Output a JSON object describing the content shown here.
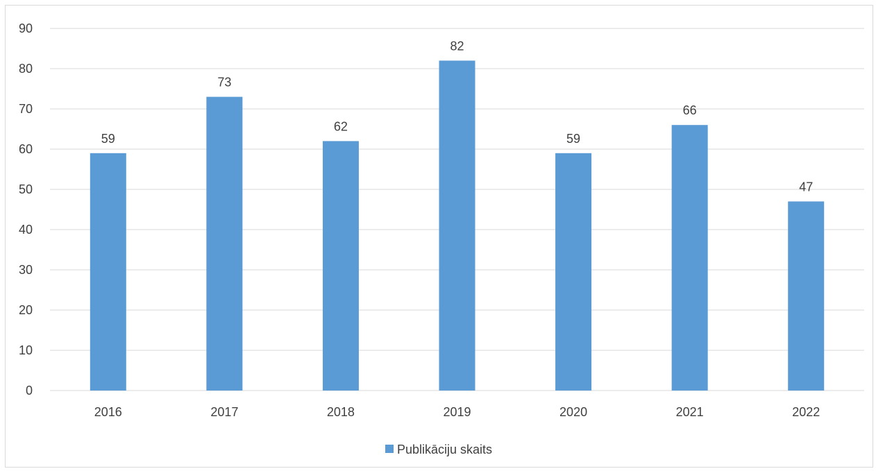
{
  "chart_data": {
    "type": "bar",
    "title": "",
    "xlabel": "",
    "ylabel": "",
    "categories": [
      "2016",
      "2017",
      "2018",
      "2019",
      "2020",
      "2021",
      "2022"
    ],
    "series": [
      {
        "name": "Publikāciju skaits",
        "values": [
          59,
          73,
          62,
          82,
          59,
          66,
          47
        ],
        "color": "#5b9bd5"
      }
    ],
    "ylim": [
      0,
      90
    ],
    "yticks": [
      0,
      10,
      20,
      30,
      40,
      50,
      60,
      70,
      80,
      90
    ],
    "grid": true,
    "data_labels": true,
    "legend_position": "bottom",
    "gridline_color": "#d9d9d9",
    "text_color": "#404040"
  }
}
